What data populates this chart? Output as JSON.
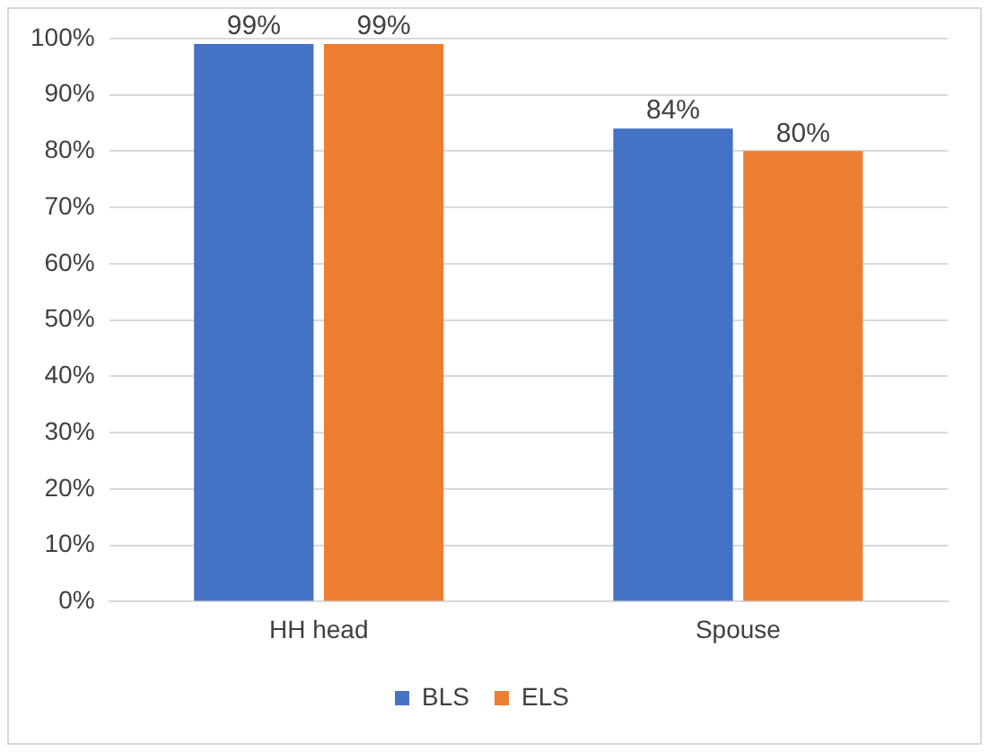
{
  "chart_data": {
    "type": "bar",
    "categories": [
      "HH head",
      "Spouse"
    ],
    "series": [
      {
        "name": "BLS",
        "color": "#4472c4",
        "values": [
          99,
          84
        ],
        "value_labels": [
          "99%",
          "84%"
        ]
      },
      {
        "name": "ELS",
        "color": "#ed7d31",
        "values": [
          99,
          80
        ],
        "value_labels": [
          "99%",
          "80%"
        ]
      }
    ],
    "ylim": [
      0,
      100
    ],
    "yticks": [
      {
        "value": 0,
        "label": "0%"
      },
      {
        "value": 10,
        "label": "10%"
      },
      {
        "value": 20,
        "label": "20%"
      },
      {
        "value": 30,
        "label": "30%"
      },
      {
        "value": 40,
        "label": "40%"
      },
      {
        "value": 50,
        "label": "50%"
      },
      {
        "value": 60,
        "label": "60%"
      },
      {
        "value": 70,
        "label": "70%"
      },
      {
        "value": 80,
        "label": "80%"
      },
      {
        "value": 90,
        "label": "90%"
      },
      {
        "value": 100,
        "label": "100%"
      }
    ],
    "grid": "y",
    "legend": "bottom"
  }
}
